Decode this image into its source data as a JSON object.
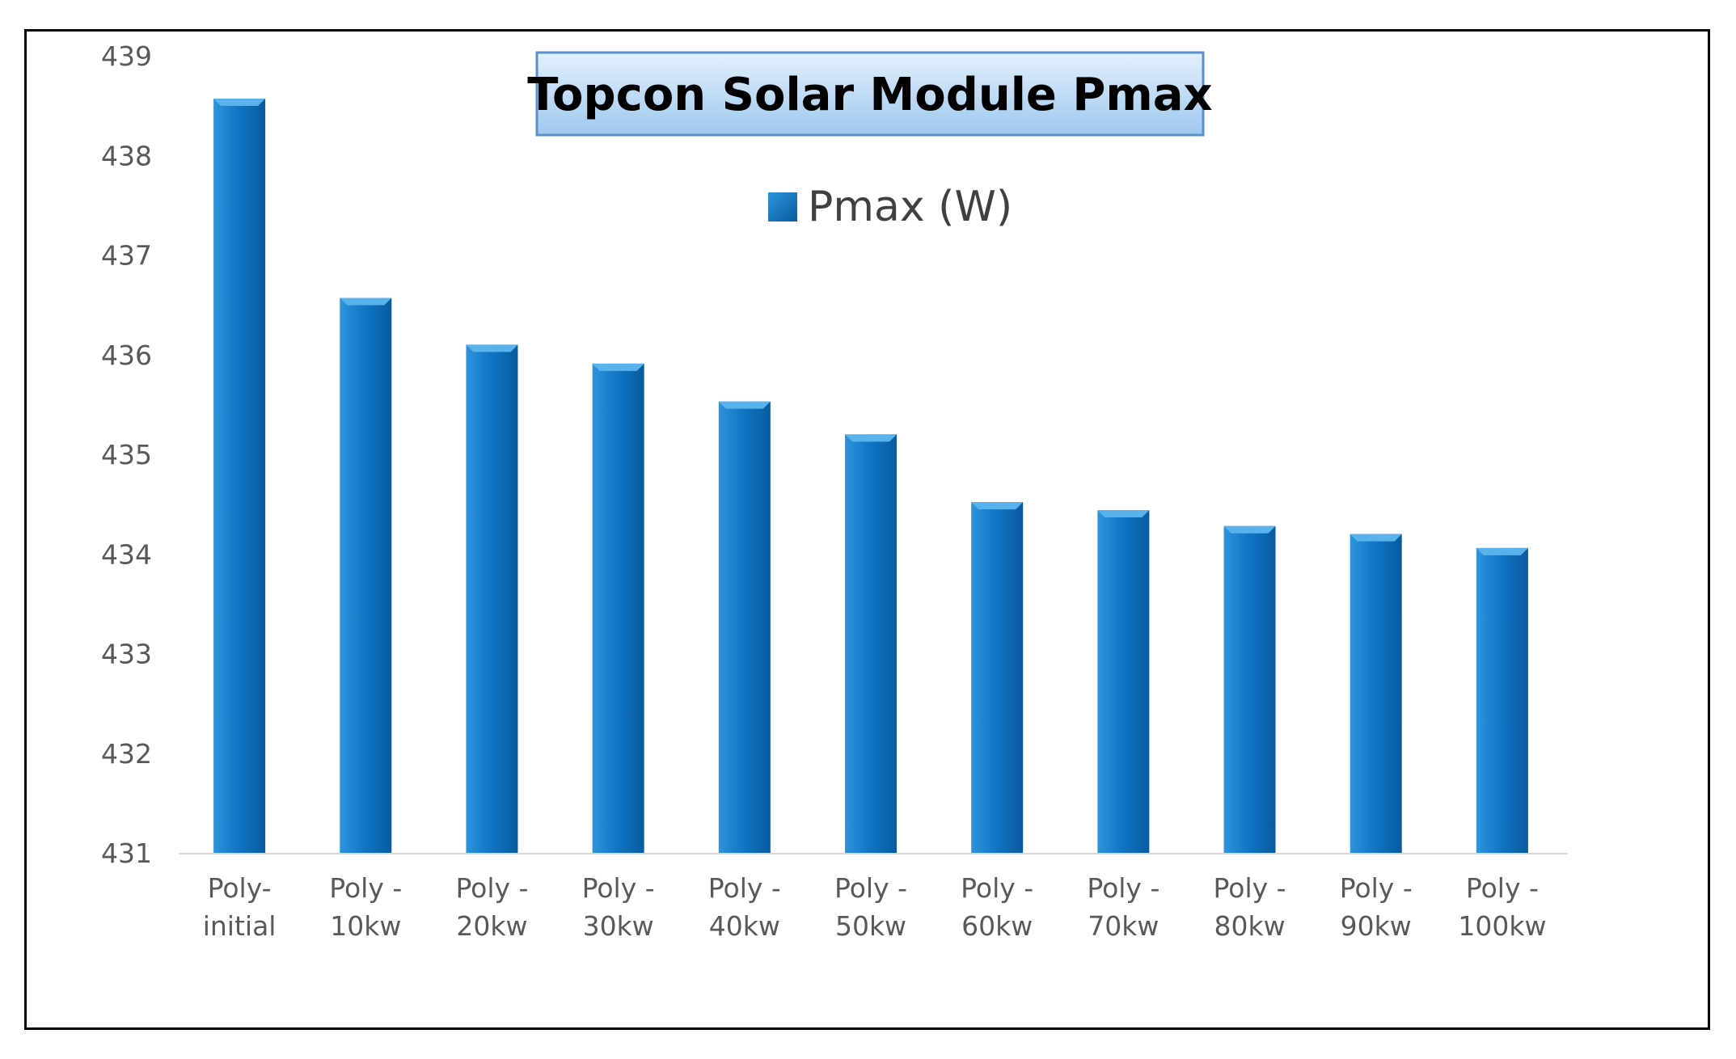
{
  "chart_data": {
    "type": "bar",
    "title": "Topcon Solar Module Pmax",
    "series": [
      {
        "name": "Pmax (W)",
        "values": [
          438.57,
          436.57,
          436.1,
          435.91,
          435.53,
          435.2,
          434.52,
          434.44,
          434.28,
          434.2,
          434.06
        ]
      }
    ],
    "categories": [
      [
        "Poly-",
        "initial"
      ],
      [
        "Poly -",
        "10kw"
      ],
      [
        "Poly -",
        "20kw"
      ],
      [
        "Poly -",
        "30kw"
      ],
      [
        "Poly -",
        "40kw"
      ],
      [
        "Poly -",
        "50kw"
      ],
      [
        "Poly -",
        "60kw"
      ],
      [
        "Poly -",
        "70kw"
      ],
      [
        "Poly -",
        "80kw"
      ],
      [
        "Poly -",
        "90kw"
      ],
      [
        "Poly -",
        "100kw"
      ]
    ],
    "y_ticks": [
      "431",
      "432",
      "433",
      "434",
      "435",
      "436",
      "437",
      "438",
      "439"
    ],
    "ylim": [
      431,
      439
    ],
    "xlabel": "",
    "ylabel": "",
    "grid": false,
    "legend_position": "top-center",
    "colors": {
      "bar_light": "#2f94dc",
      "bar_main": "#1177c6",
      "bar_dark": "#0a5a9e",
      "bar_top": "#5ab2ec",
      "axis": "#d9d9d9",
      "title_fill_top": "#e3f0fd",
      "title_fill_bottom": "#9fc8ef",
      "title_border": "#5b8fcc"
    }
  }
}
